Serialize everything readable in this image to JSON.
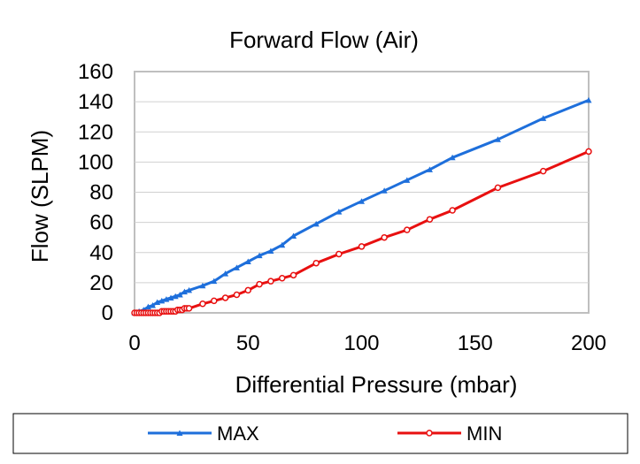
{
  "chart_data": {
    "type": "line",
    "title": "Forward Flow (Air)",
    "xlabel": "Differential Pressure (mbar)",
    "ylabel": "Flow (SLPM)",
    "xlim": [
      0,
      200
    ],
    "ylim": [
      0,
      160
    ],
    "xticks": [
      "0",
      "50",
      "100",
      "150",
      "200"
    ],
    "yticks": [
      "0",
      "20",
      "40",
      "60",
      "80",
      "100",
      "120",
      "140",
      "160"
    ],
    "grid": "horizontal",
    "legend_position": "bottom",
    "series": [
      {
        "name": "MAX",
        "color": "#1e6fdb",
        "marker": "triangle",
        "x": [
          0,
          2,
          4,
          6,
          8,
          10,
          12,
          14,
          16,
          18,
          20,
          22,
          24,
          30,
          35,
          40,
          45,
          50,
          55,
          60,
          65,
          70,
          80,
          90,
          100,
          110,
          120,
          130,
          140,
          160,
          180,
          200
        ],
        "y": [
          0,
          1,
          2,
          4,
          5,
          7,
          8,
          9,
          10,
          11,
          12,
          14,
          15,
          18,
          21,
          26,
          30,
          34,
          38,
          41,
          45,
          51,
          59,
          67,
          74,
          81,
          88,
          95,
          103,
          115,
          129,
          141
        ]
      },
      {
        "name": "MIN",
        "color": "#e81010",
        "marker": "circle",
        "x": [
          0,
          1,
          2,
          3,
          4,
          5,
          6,
          7,
          8,
          9,
          10,
          11,
          12,
          13,
          14,
          15,
          16,
          17,
          18,
          19,
          20,
          21,
          22,
          23,
          24,
          30,
          35,
          40,
          45,
          50,
          55,
          60,
          65,
          70,
          80,
          90,
          100,
          110,
          120,
          130,
          140,
          160,
          180,
          200
        ],
        "y": [
          0,
          0,
          0,
          0,
          0,
          0,
          0,
          0,
          0,
          0,
          0,
          0,
          1,
          1,
          1,
          1,
          1,
          1,
          1,
          2,
          2,
          2,
          3,
          3,
          3,
          6,
          8,
          10,
          12,
          15,
          19,
          21,
          23,
          25,
          33,
          39,
          44,
          50,
          55,
          62,
          68,
          83,
          94,
          107
        ]
      }
    ]
  }
}
